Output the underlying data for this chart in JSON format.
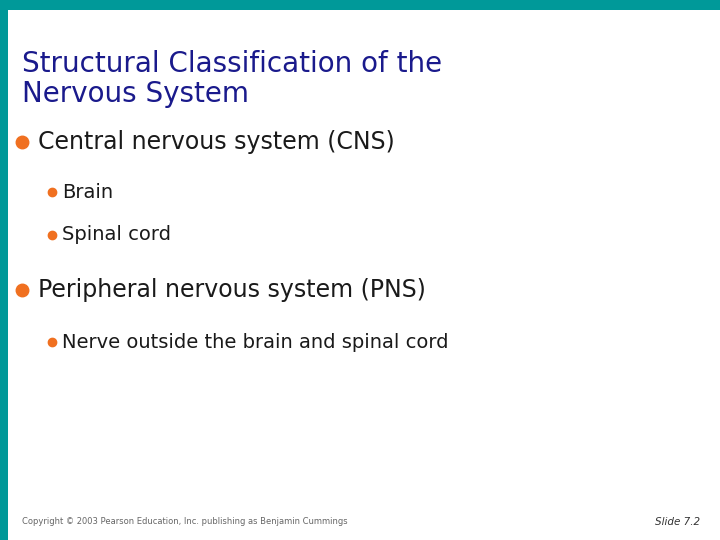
{
  "title_line1": "Structural Classification of the",
  "title_line2": "Nervous System",
  "title_color": "#1a1a8c",
  "background_color": "#ffffff",
  "top_bar_color": "#009999",
  "left_bar_color": "#009999",
  "bullet_color": "#f07020",
  "text_color": "#1a1a1a",
  "bullet1_text": "Central nervous system (CNS)",
  "bullet1a_text": "Brain",
  "bullet1b_text": "Spinal cord",
  "bullet2_text": "Peripheral nervous system (PNS)",
  "bullet2a_text": "Nerve outside the brain and spinal cord",
  "copyright_text": "Copyright © 2003 Pearson Education, Inc. publishing as Benjamin Cummings",
  "slide_text": "Slide 7.2"
}
